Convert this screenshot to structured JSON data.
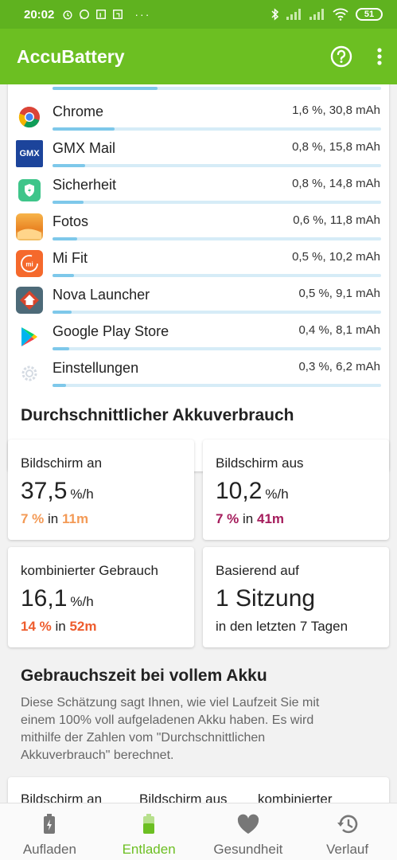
{
  "status_bar": {
    "time": "20:02",
    "dots": "···",
    "battery": "51"
  },
  "app_bar": {
    "title": "AccuBattery"
  },
  "app_list": [
    {
      "name": "Chrome",
      "value": "1,6 %, 30,8 mAh",
      "share": 0.19,
      "icon": "chrome-icon"
    },
    {
      "name": "GMX Mail",
      "value": "0,8 %, 15,8 mAh",
      "share": 0.1,
      "icon": "gmx-mail-icon"
    },
    {
      "name": "Sicherheit",
      "value": "0,8 %, 14,8 mAh",
      "share": 0.095,
      "icon": "security-shield-icon"
    },
    {
      "name": "Fotos",
      "value": "0,6 %, 11,8 mAh",
      "share": 0.075,
      "icon": "photos-icon"
    },
    {
      "name": "Mi Fit",
      "value": "0,5 %, 10,2 mAh",
      "share": 0.065,
      "icon": "mi-fit-icon"
    },
    {
      "name": "Nova Launcher",
      "value": "0,5 %, 9,1 mAh",
      "share": 0.057,
      "icon": "nova-launcher-icon"
    },
    {
      "name": "Google Play Store",
      "value": "0,4 %, 8,1 mAh",
      "share": 0.052,
      "icon": "play-store-icon"
    },
    {
      "name": "Einstellungen",
      "value": "0,3 %, 6,2 mAh",
      "share": 0.04,
      "icon": "settings-gear-icon"
    }
  ],
  "avg_section": {
    "title": "Durchschnittlicher Akkuverbrauch",
    "screen_on": {
      "label": "Bildschirm an",
      "value": "37,5",
      "unit": "%/h",
      "pct": "7 %",
      "in": "in",
      "time": "11m"
    },
    "screen_off": {
      "label": "Bildschirm aus",
      "value": "10,2",
      "unit": "%/h",
      "pct": "7 %",
      "in": "in",
      "time": "41m"
    },
    "combined": {
      "label": "kombinierter Gebrauch",
      "value": "16,1",
      "unit": "%/h",
      "pct": "14 %",
      "in": "in",
      "time": "52m"
    },
    "based_on": {
      "label": "Basierend auf",
      "value": "1 Sitzung",
      "sub": "in den letzten 7 Tagen"
    }
  },
  "full_section": {
    "title": "Gebrauchszeit bei vollem Akku",
    "description": "Diese Schätzung sagt Ihnen, wie viel Laufzeit Sie mit einem 100% voll aufgeladenen Akku haben. Es wird mithilfe der Zahlen vom \"Durchschnittlichen Akkuverbrauch\" berechnet.",
    "columns": [
      "Bildschirm an",
      "Bildschirm aus",
      "kombinierter"
    ]
  },
  "bottom_nav": [
    {
      "label": "Aufladen",
      "icon": "charging-battery-icon",
      "active": false
    },
    {
      "label": "Entladen",
      "icon": "discharging-battery-icon",
      "active": true
    },
    {
      "label": "Gesundheit",
      "icon": "heart-icon",
      "active": false
    },
    {
      "label": "Verlauf",
      "icon": "history-icon",
      "active": false
    }
  ],
  "colors": {
    "accent": "#6cbf22",
    "status_bar": "#5fb21f",
    "bar_fill": "#7ec8ea",
    "orange": "#f39a56",
    "purple": "#a51d5c",
    "red": "#ee5d2e"
  }
}
